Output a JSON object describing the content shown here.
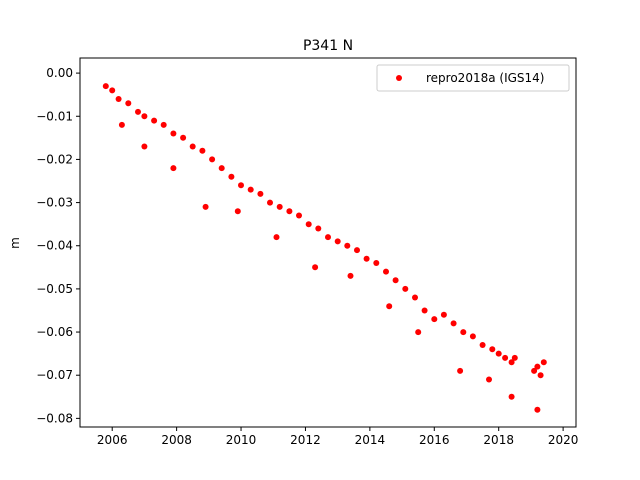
{
  "chart_data": {
    "type": "scatter",
    "title": "P341 N",
    "xlabel": "",
    "ylabel": "m",
    "xlim": [
      2005.0,
      2020.4
    ],
    "ylim": [
      -0.082,
      0.0035
    ],
    "xticks": [
      2006,
      2008,
      2010,
      2012,
      2014,
      2016,
      2018,
      2020
    ],
    "xtick_labels": [
      "2006",
      "2008",
      "2010",
      "2012",
      "2014",
      "2016",
      "2018",
      "2020"
    ],
    "yticks": [
      0.0,
      -0.01,
      -0.02,
      -0.03,
      -0.04,
      -0.05,
      -0.06,
      -0.07,
      -0.08
    ],
    "ytick_labels": [
      "0.00",
      "−0.01",
      "−0.02",
      "−0.03",
      "−0.04",
      "−0.05",
      "−0.06",
      "−0.07",
      "−0.08"
    ],
    "grid": false,
    "legend_position": "top-right",
    "series": [
      {
        "name": "repro2018a (IGS14)",
        "color": "#ff0000",
        "marker": "circle",
        "x": [
          2005.8,
          2006.0,
          2006.2,
          2006.5,
          2006.8,
          2007.0,
          2007.3,
          2007.6,
          2007.9,
          2008.2,
          2008.5,
          2008.8,
          2009.1,
          2009.4,
          2009.7,
          2010.0,
          2010.3,
          2010.6,
          2010.9,
          2011.2,
          2011.5,
          2011.8,
          2012.1,
          2012.4,
          2012.7,
          2013.0,
          2013.3,
          2013.6,
          2013.9,
          2014.2,
          2014.5,
          2014.8,
          2015.1,
          2015.4,
          2015.7,
          2016.0,
          2016.3,
          2016.6,
          2016.9,
          2017.2,
          2017.5,
          2017.8,
          2018.0,
          2018.2,
          2018.4,
          2018.5,
          2019.1,
          2019.2,
          2019.3,
          2019.4,
          2006.3,
          2007.0,
          2007.9,
          2008.9,
          2009.9,
          2011.1,
          2012.3,
          2013.4,
          2014.6,
          2015.5,
          2016.8,
          2017.7,
          2018.4,
          2019.2
        ],
        "y": [
          -0.003,
          -0.004,
          -0.006,
          -0.007,
          -0.009,
          -0.01,
          -0.011,
          -0.012,
          -0.014,
          -0.015,
          -0.017,
          -0.018,
          -0.02,
          -0.022,
          -0.024,
          -0.026,
          -0.027,
          -0.028,
          -0.03,
          -0.031,
          -0.032,
          -0.033,
          -0.035,
          -0.036,
          -0.038,
          -0.039,
          -0.04,
          -0.041,
          -0.043,
          -0.044,
          -0.046,
          -0.048,
          -0.05,
          -0.052,
          -0.055,
          -0.057,
          -0.056,
          -0.058,
          -0.06,
          -0.061,
          -0.063,
          -0.064,
          -0.065,
          -0.066,
          -0.067,
          -0.066,
          -0.069,
          -0.068,
          -0.07,
          -0.067,
          -0.012,
          -0.017,
          -0.022,
          -0.031,
          -0.032,
          -0.038,
          -0.045,
          -0.047,
          -0.054,
          -0.06,
          -0.069,
          -0.071,
          -0.075,
          -0.078
        ]
      }
    ]
  }
}
